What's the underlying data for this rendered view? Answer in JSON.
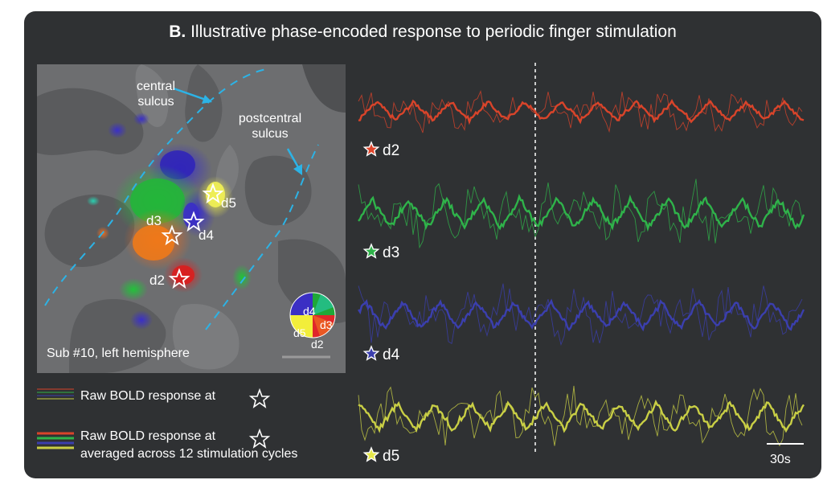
{
  "title": {
    "panel_letter": "B.",
    "text": "Illustrative phase-encoded response to periodic finger stimulation"
  },
  "brain": {
    "label_central": [
      "central",
      "sulcus"
    ],
    "label_postcentral": [
      "postcentral",
      "sulcus"
    ],
    "subject": "Sub #10, left hemisphere",
    "digit_labels": [
      "d2",
      "d3",
      "d4",
      "d5"
    ],
    "wheel_labels": [
      "d4",
      "d3",
      "d5",
      "d2"
    ]
  },
  "traces": [
    {
      "label": "d2",
      "color": "#d9442a",
      "star_color": "#e0452b"
    },
    {
      "label": "d3",
      "color": "#2fb34a",
      "star_color": "#2fb34a"
    },
    {
      "label": "d4",
      "color": "#3b3fae",
      "star_color": "#3b3fae"
    },
    {
      "label": "d5",
      "color": "#c9cf45",
      "star_color": "#e6e84a"
    }
  ],
  "legend": {
    "raw": "Raw BOLD response at",
    "avg_line1": "Raw BOLD response at",
    "avg_line2": "averaged across 12 stimulation cycles"
  },
  "scale_bar": "30s"
}
